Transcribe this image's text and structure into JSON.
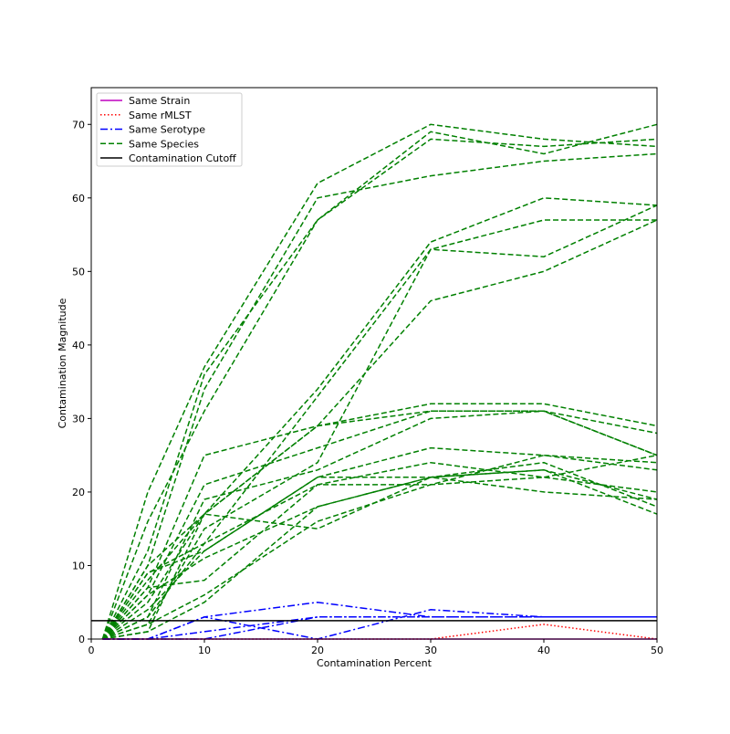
{
  "chart_data": {
    "type": "line",
    "title": "",
    "xlabel": "Contamination Percent",
    "ylabel": "Contamination Magnitude",
    "xlim": [
      0,
      50
    ],
    "ylim": [
      0,
      75
    ],
    "x_ticks": [
      0,
      10,
      20,
      30,
      40,
      50
    ],
    "y_ticks": [
      0,
      10,
      20,
      30,
      40,
      50,
      60,
      70
    ],
    "grid": false,
    "legend_position": "top-left",
    "x": [
      1,
      5,
      10,
      20,
      30,
      40,
      50
    ],
    "legend": [
      {
        "name": "Same Strain",
        "color": "#bf00bf",
        "style": "solid"
      },
      {
        "name": "Same rMLST",
        "color": "#ff0000",
        "style": "dotted"
      },
      {
        "name": "Same Serotype",
        "color": "#0000ff",
        "style": "dashdot"
      },
      {
        "name": "Same Species",
        "color": "#008000",
        "style": "dashed"
      },
      {
        "name": "Contamination Cutoff",
        "color": "#000000",
        "style": "solid"
      }
    ],
    "cutoff": 2.5,
    "series": [
      {
        "category": "Same Strain",
        "values": [
          0,
          0,
          0,
          0,
          0,
          0,
          0
        ]
      },
      {
        "category": "Same rMLST",
        "values": [
          0,
          0,
          0,
          0,
          0,
          2,
          0
        ]
      },
      {
        "category": "Same Serotype",
        "values": [
          0,
          0,
          3,
          5,
          3,
          3,
          3
        ]
      },
      {
        "category": "Same Serotype",
        "values": [
          0,
          0,
          3,
          0,
          4,
          3,
          3
        ]
      },
      {
        "category": "Same Serotype",
        "values": [
          0,
          0,
          0,
          3,
          3,
          3,
          3
        ]
      },
      {
        "category": "Same Serotype",
        "values": [
          0,
          0,
          1,
          3,
          3,
          3,
          3
        ]
      },
      {
        "category": "Same Species",
        "values": [
          0,
          20,
          37,
          62,
          70,
          68,
          67
        ]
      },
      {
        "category": "Same Species",
        "values": [
          0,
          16,
          31,
          57,
          68,
          67,
          68
        ]
      },
      {
        "category": "Same Species",
        "values": [
          0,
          12,
          36,
          57,
          69,
          66,
          70
        ]
      },
      {
        "category": "Same Species",
        "values": [
          0,
          10,
          34,
          60,
          63,
          65,
          66
        ]
      },
      {
        "category": "Same Species",
        "values": [
          0,
          5,
          17,
          34,
          54,
          60,
          59
        ]
      },
      {
        "category": "Same Species",
        "values": [
          0,
          3,
          13,
          33,
          53,
          52,
          59
        ]
      },
      {
        "category": "Same Species",
        "values": [
          0,
          2,
          15,
          24,
          53,
          57,
          57
        ]
      },
      {
        "category": "Same Species",
        "values": [
          0,
          1,
          17,
          29,
          46,
          50,
          57
        ]
      },
      {
        "category": "Same Species",
        "values": [
          0,
          7,
          25,
          29,
          32,
          32,
          29
        ]
      },
      {
        "category": "Same Species",
        "values": [
          0,
          6,
          21,
          26,
          31,
          31,
          25
        ]
      },
      {
        "category": "Same Species",
        "values": [
          0,
          8,
          17,
          29,
          31,
          31,
          25
        ]
      },
      {
        "category": "Same Species",
        "values": [
          0,
          3,
          19,
          23,
          30,
          31,
          28
        ]
      },
      {
        "category": "Same Species",
        "values": [
          0,
          4,
          12,
          22,
          26,
          25,
          24
        ]
      },
      {
        "category": "Same Species",
        "values": [
          0,
          9,
          13,
          21,
          24,
          22,
          25
        ]
      },
      {
        "category": "Same Species",
        "values": [
          0,
          6,
          11,
          18,
          22,
          24,
          18
        ]
      },
      {
        "category": "Same Species",
        "values": [
          0,
          10,
          17,
          15,
          22,
          23,
          17
        ]
      },
      {
        "category": "Same Species",
        "values": [
          0,
          2,
          6,
          16,
          21,
          25,
          23
        ]
      },
      {
        "category": "Same Species",
        "values": [
          0,
          1,
          5,
          18,
          22,
          20,
          19
        ]
      },
      {
        "category": "Same Species",
        "values": [
          0,
          7,
          8,
          21,
          21,
          22,
          20
        ]
      },
      {
        "category": "Same Species",
        "values": [
          0,
          9,
          12,
          22,
          22,
          23,
          19
        ]
      }
    ]
  }
}
